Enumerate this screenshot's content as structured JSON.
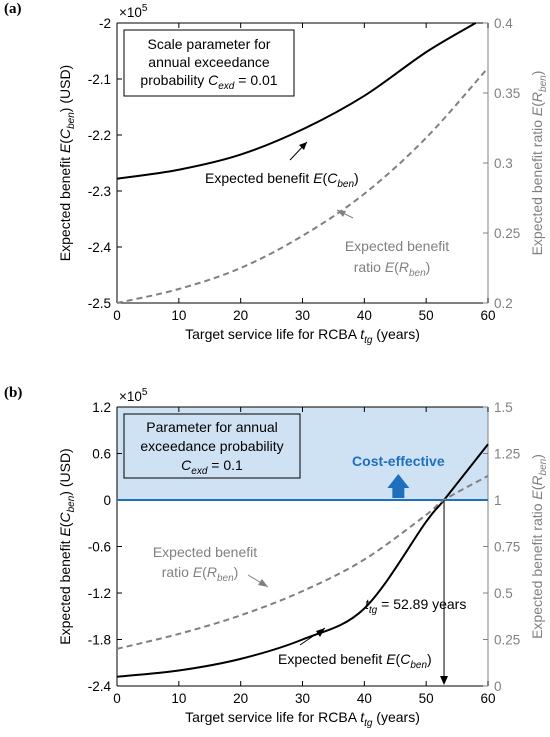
{
  "colors": {
    "left": "#000000",
    "right": "#808080",
    "shade": "#cfe2f3",
    "accent": "#1f6fbf"
  },
  "chart_data": [
    {
      "panel": "(a)",
      "type": "line",
      "xlabel": "Target service life for RCBA",
      "xlabel_sym": "t",
      "xlabel_sub": "tg",
      "xlabel_tail": " (years)",
      "xlim": [
        0,
        60
      ],
      "xticks": [
        0,
        10,
        20,
        30,
        40,
        50,
        60
      ],
      "ylabel_left": {
        "pre": "Expected benefit ",
        "mid": "E",
        "paren": "(C",
        "sub": "ben",
        "post": ") (USD)"
      },
      "ylabel_right": {
        "pre": "Expected benefit ratio ",
        "mid": "E",
        "paren": "(R",
        "sub": "ben",
        "post": ")"
      },
      "ylim_left": [
        -2.5,
        -2.0
      ],
      "yticks_left": [
        -2.5,
        -2.4,
        -2.3,
        -2.2,
        -2.1,
        -2.0
      ],
      "ytick_labels_left": [
        "-2.5",
        "-2.4",
        "-2.3",
        "-2.2",
        "-2.1",
        "-2"
      ],
      "multiplier": "×10",
      "multiplier_exp": "5",
      "ylim_right": [
        0.2,
        0.4
      ],
      "yticks_right": [
        0.2,
        0.25,
        0.3,
        0.35,
        0.4
      ],
      "ytick_labels_right": [
        "0.2",
        "0.25",
        "0.3",
        "0.35",
        "0.4"
      ],
      "box_text": [
        "Scale parameter for",
        "annual exceedance"
      ],
      "box_line3": {
        "pre": "probability ",
        "sym": "C",
        "sub": "exd",
        "post": " = 0.01"
      },
      "series": [
        {
          "axis": "left",
          "style": "solid",
          "label": {
            "pre": "Expected benefit ",
            "mid": "E",
            "paren": "(C",
            "sub": "ben",
            "post": ")"
          },
          "x": [
            0,
            10,
            20,
            30,
            40,
            50,
            58
          ],
          "y": [
            -2.278,
            -2.262,
            -2.235,
            -2.19,
            -2.13,
            -2.052,
            -2.0
          ]
        },
        {
          "axis": "right",
          "style": "dashed",
          "label_line1": "Expected benefit",
          "label_line2": {
            "pre": "ratio ",
            "mid": "E",
            "paren": "(R",
            "sub": "ben",
            "post": ")"
          },
          "x": [
            0,
            10,
            20,
            30,
            40,
            50,
            60
          ],
          "y": [
            0.2,
            0.21,
            0.225,
            0.248,
            0.278,
            0.318,
            0.368
          ]
        }
      ]
    },
    {
      "panel": "(b)",
      "type": "line",
      "xlabel": "Target service life for RCBA",
      "xlabel_sym": "t",
      "xlabel_sub": "tg",
      "xlabel_tail": " (years)",
      "xlim": [
        0,
        60
      ],
      "xticks": [
        0,
        10,
        20,
        30,
        40,
        50,
        60
      ],
      "ylabel_left": {
        "pre": "Expected benefit ",
        "mid": "E",
        "paren": "(C",
        "sub": "ben",
        "post": ") (USD)"
      },
      "ylabel_right": {
        "pre": "Expected benefit ratio ",
        "mid": "E",
        "paren": "(R",
        "sub": "ben",
        "post": ")"
      },
      "ylim_left": [
        -2.4,
        1.2
      ],
      "yticks_left": [
        -2.4,
        -1.8,
        -1.2,
        -0.6,
        0,
        0.6,
        1.2
      ],
      "ytick_labels_left": [
        "-2.4",
        "-1.8",
        "-1.2",
        "-0.6",
        "0",
        "0.6",
        "1.2"
      ],
      "multiplier": "×10",
      "multiplier_exp": "5",
      "ylim_right": [
        0,
        1.5
      ],
      "yticks_right": [
        0,
        0.25,
        0.5,
        0.75,
        1,
        1.25,
        1.5
      ],
      "ytick_labels_right": [
        "0",
        "0.25",
        "0.5",
        "0.75",
        "1",
        "1.25",
        "1.5"
      ],
      "box_text": [
        "Parameter for annual",
        "exceedance probability"
      ],
      "box_line3": {
        "pre": "",
        "sym": "C",
        "sub": "exd",
        "post": " = 0.1"
      },
      "cost_effective_label": "Cost-effective",
      "t_label": {
        "sym": "t",
        "sub": "tg",
        "post": " = 52.89 years"
      },
      "t_value": 52.89,
      "series": [
        {
          "axis": "left",
          "style": "solid",
          "label": {
            "pre": "Expected benefit ",
            "mid": "E",
            "paren": "(C",
            "sub": "ben",
            "post": ")"
          },
          "x": [
            0,
            10,
            20,
            30,
            40,
            50,
            52.89,
            60
          ],
          "y": [
            -2.28,
            -2.2,
            -2.05,
            -1.8,
            -1.4,
            -0.28,
            0,
            0.72
          ]
        },
        {
          "axis": "right",
          "style": "dashed",
          "label_line1": "Expected benefit",
          "label_line2": {
            "pre": "ratio ",
            "mid": "E",
            "paren": "(R",
            "sub": "ben",
            "post": ")"
          },
          "x": [
            0,
            10,
            20,
            30,
            40,
            50,
            52.89,
            60
          ],
          "y": [
            0.2,
            0.28,
            0.38,
            0.51,
            0.68,
            0.92,
            1.0,
            1.13
          ]
        }
      ]
    }
  ]
}
